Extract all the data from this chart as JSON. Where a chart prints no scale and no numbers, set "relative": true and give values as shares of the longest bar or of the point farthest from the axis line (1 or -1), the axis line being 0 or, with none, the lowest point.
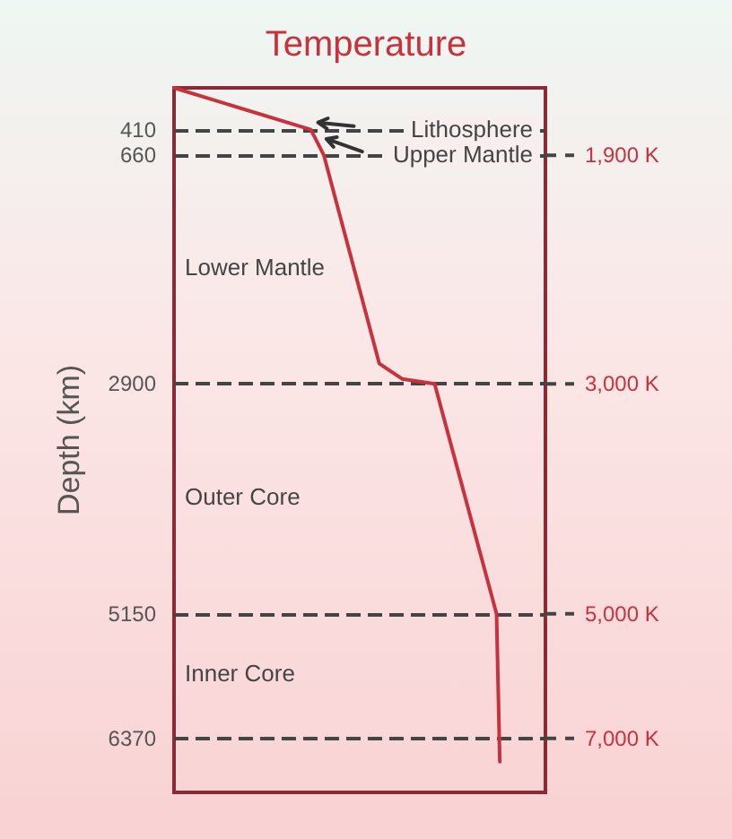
{
  "chart_data": {
    "type": "line",
    "title": "Temperature",
    "ylabel": "Depth (km)",
    "relative": true,
    "orientation": "horizontal",
    "tick_labels": "y",
    "grid": false,
    "marker": "none",
    "line_style": "solid",
    "series": [
      {
        "color": "#c8323c",
        "x": [
          0,
          410,
          660,
          2700,
          2850,
          2900,
          5150,
          6600
        ],
        "values": [
          0,
          0.42,
          0.46,
          0.63,
          0.7,
          0.8,
          0.99,
          1.0
        ]
      }
    ],
    "ylim": [
      6900,
      0
    ],
    "yticks": [
      410,
      660,
      2900,
      5150,
      6370
    ],
    "ref_lines": [
      {
        "axis": "y",
        "value": 410,
        "label": null,
        "color": "#444444",
        "line_style": "dashed"
      },
      {
        "axis": "y",
        "value": 660,
        "label": "1,900 K",
        "color": "#444444",
        "line_style": "dashed"
      },
      {
        "axis": "y",
        "value": 2900,
        "label": "3,000 K",
        "color": "#444444",
        "line_style": "dashed"
      },
      {
        "axis": "y",
        "value": 5150,
        "label": "5,000 K",
        "color": "#444444",
        "line_style": "dashed"
      },
      {
        "axis": "y",
        "value": 6370,
        "label": "7,000 K",
        "color": "#444444",
        "line_style": "dashed"
      }
    ],
    "annotations": [
      "Lithosphere",
      "Upper Mantle",
      "Lower Mantle",
      "Outer Core",
      "Inner Core"
    ]
  }
}
